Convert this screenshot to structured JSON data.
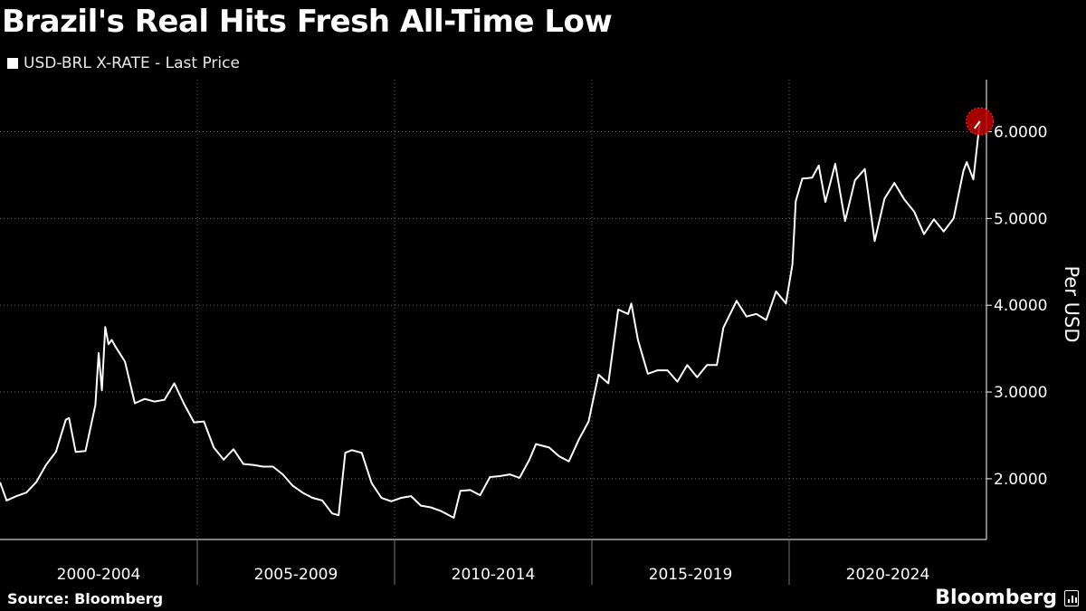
{
  "chart_data": {
    "type": "line",
    "title": "Brazil's Real Hits Fresh All-Time Low",
    "legend": [
      "USD-BRL X-RATE - Last Price"
    ],
    "legend_placement": "top-left",
    "ylabel": "Per USD",
    "ylim": [
      1.3,
      6.6
    ],
    "y_ticks": [
      "2.0000",
      "3.0000",
      "4.0000",
      "5.0000",
      "6.0000"
    ],
    "x_categories": [
      "2000-2004",
      "2005-2009",
      "2010-2014",
      "2015-2019",
      "2020-2024"
    ],
    "x_range": [
      "2000-01",
      "2024-12"
    ],
    "grid": true,
    "highlight": {
      "date": "2024-11",
      "value": 6.12,
      "color": "#c00000"
    },
    "series": [
      {
        "name": "USD-BRL X-RATE - Last Price",
        "x": [
          "2000-01",
          "2000-03",
          "2000-06",
          "2000-09",
          "2000-12",
          "2001-03",
          "2001-06",
          "2001-09",
          "2001-10",
          "2001-12",
          "2002-03",
          "2002-06",
          "2002-07",
          "2002-08",
          "2002-09",
          "2002-10",
          "2002-11",
          "2002-12",
          "2003-03",
          "2003-06",
          "2003-09",
          "2003-12",
          "2004-03",
          "2004-06",
          "2004-09",
          "2004-12",
          "2005-03",
          "2005-06",
          "2005-09",
          "2005-12",
          "2006-03",
          "2006-06",
          "2006-09",
          "2006-12",
          "2007-03",
          "2007-06",
          "2007-09",
          "2007-12",
          "2008-03",
          "2008-06",
          "2008-08",
          "2008-10",
          "2008-12",
          "2009-03",
          "2009-06",
          "2009-09",
          "2009-12",
          "2010-03",
          "2010-06",
          "2010-09",
          "2010-12",
          "2011-03",
          "2011-07",
          "2011-09",
          "2011-12",
          "2012-03",
          "2012-06",
          "2012-09",
          "2012-12",
          "2013-03",
          "2013-06",
          "2013-08",
          "2013-12",
          "2014-03",
          "2014-06",
          "2014-09",
          "2014-12",
          "2015-03",
          "2015-06",
          "2015-09",
          "2015-12",
          "2016-01",
          "2016-03",
          "2016-06",
          "2016-09",
          "2016-12",
          "2017-03",
          "2017-06",
          "2017-09",
          "2017-12",
          "2018-03",
          "2018-05",
          "2018-09",
          "2018-12",
          "2019-03",
          "2019-06",
          "2019-09",
          "2019-12",
          "2020-02",
          "2020-03",
          "2020-05",
          "2020-08",
          "2020-10",
          "2020-12",
          "2021-03",
          "2021-06",
          "2021-09",
          "2021-12",
          "2022-03",
          "2022-06",
          "2022-09",
          "2022-12",
          "2023-03",
          "2023-06",
          "2023-09",
          "2023-12",
          "2024-03",
          "2024-06",
          "2024-07",
          "2024-09",
          "2024-11"
        ],
        "values": [
          1.96,
          1.75,
          1.8,
          1.84,
          1.96,
          2.16,
          2.31,
          2.68,
          2.7,
          2.31,
          2.32,
          2.85,
          3.45,
          3.02,
          3.75,
          3.55,
          3.6,
          3.53,
          3.35,
          2.87,
          2.92,
          2.89,
          2.91,
          3.1,
          2.86,
          2.65,
          2.66,
          2.36,
          2.22,
          2.34,
          2.17,
          2.16,
          2.14,
          2.14,
          2.05,
          1.92,
          1.84,
          1.78,
          1.75,
          1.6,
          1.58,
          2.3,
          2.33,
          2.3,
          1.95,
          1.78,
          1.74,
          1.78,
          1.8,
          1.69,
          1.67,
          1.63,
          1.55,
          1.86,
          1.87,
          1.81,
          2.02,
          2.03,
          2.05,
          2.01,
          2.22,
          2.4,
          2.36,
          2.26,
          2.2,
          2.45,
          2.66,
          3.2,
          3.1,
          3.95,
          3.9,
          4.02,
          3.6,
          3.21,
          3.25,
          3.25,
          3.12,
          3.31,
          3.17,
          3.31,
          3.31,
          3.74,
          4.05,
          3.87,
          3.9,
          3.83,
          4.16,
          4.02,
          4.47,
          5.2,
          5.46,
          5.47,
          5.61,
          5.19,
          5.63,
          4.97,
          5.44,
          5.57,
          4.74,
          5.23,
          5.41,
          5.22,
          5.08,
          4.82,
          4.99,
          4.85,
          5.0,
          5.55,
          5.65,
          5.45,
          6.12
        ]
      }
    ]
  },
  "footer": {
    "source": "Source: Bloomberg",
    "brand": "Bloomberg"
  }
}
